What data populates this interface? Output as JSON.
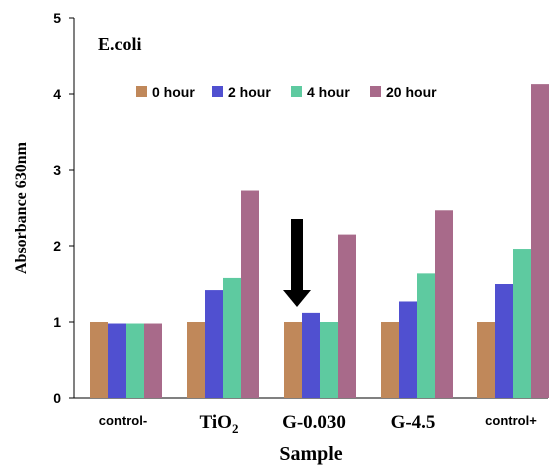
{
  "chart_data": {
    "type": "bar",
    "annotation": "E.coli",
    "xlabel": "Sample",
    "ylabel": "Absorbance 630nm",
    "ylim": [
      0,
      5
    ],
    "yticks": [
      "0",
      "1",
      "2",
      "3",
      "4",
      "5"
    ],
    "categories": [
      {
        "text": "control-",
        "sub": ""
      },
      {
        "text": "TiO",
        "sub": "2"
      },
      {
        "text": "G-0.030",
        "sub": ""
      },
      {
        "text": "G-4.5",
        "sub": ""
      },
      {
        "text": "control+",
        "sub": ""
      }
    ],
    "series": [
      {
        "name": "0 hour",
        "color": "#c0885a",
        "values": [
          1.0,
          1.0,
          1.0,
          1.0,
          1.0
        ]
      },
      {
        "name": "2 hour",
        "color": "#5050d0",
        "values": [
          0.98,
          1.42,
          1.12,
          1.27,
          1.5
        ]
      },
      {
        "name": "4 hour",
        "color": "#5ecaa0",
        "values": [
          0.98,
          1.58,
          1.0,
          1.64,
          1.96
        ]
      },
      {
        "name": "20 hour",
        "color": "#a86a8a",
        "values": [
          0.98,
          2.73,
          2.15,
          2.47,
          4.13
        ]
      }
    ],
    "legend_position": "top",
    "grid": false,
    "arrow_category": 2
  }
}
